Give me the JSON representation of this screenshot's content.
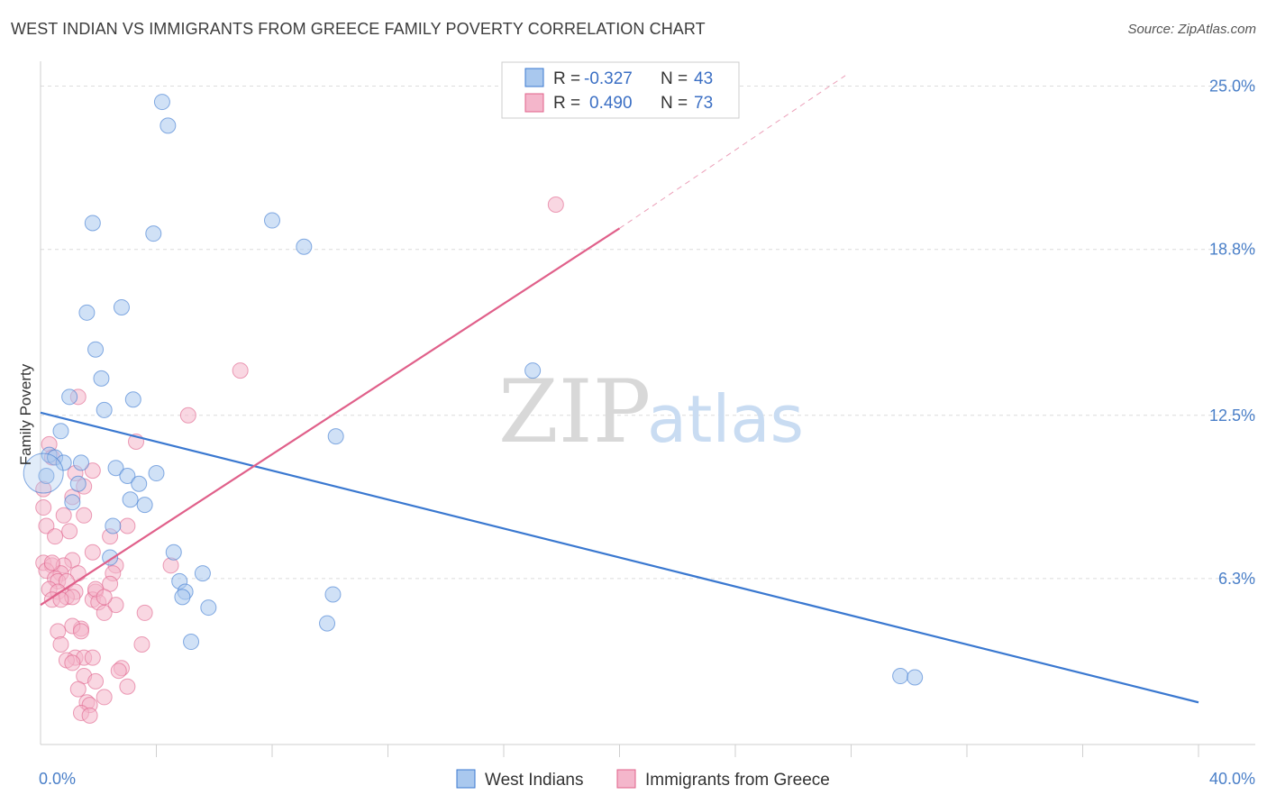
{
  "title": "WEST INDIAN VS IMMIGRANTS FROM GREECE FAMILY POVERTY CORRELATION CHART",
  "source": "Source: ZipAtlas.com",
  "chart_data": {
    "type": "scatter",
    "xlabel": "",
    "ylabel": "Family Poverty",
    "xlim": [
      0,
      40
    ],
    "ylim": [
      0,
      25.6
    ],
    "x_tick_labels": [
      {
        "value": 0,
        "label": "0.0%"
      },
      {
        "value": 40,
        "label": "40.0%"
      }
    ],
    "y_ticks": [
      {
        "value": 6.3,
        "label": "6.3%"
      },
      {
        "value": 12.5,
        "label": "12.5%"
      },
      {
        "value": 18.8,
        "label": "18.8%"
      },
      {
        "value": 25.0,
        "label": "25.0%"
      }
    ],
    "x_minor_ticks": [
      4,
      8,
      12,
      16,
      20,
      24,
      28,
      32,
      36,
      40
    ],
    "grid": "horizontal dashed",
    "watermark": {
      "zip": "ZIP",
      "atlas": "atlas"
    },
    "colors": {
      "west_indians": "#3a78d0",
      "greece": "#e0608a",
      "west_fill": "#a9c8ee",
      "greece_fill": "#f4b6cb"
    },
    "legend": {
      "position": "top-center",
      "rows": [
        {
          "r_label": "R =",
          "r_value": "-0.327",
          "n_label": "N =",
          "n_value": "43"
        },
        {
          "r_label": "R =",
          "r_value": "0.490",
          "n_label": "N =",
          "n_value": "73"
        }
      ]
    },
    "series": [
      {
        "name": "West Indians",
        "trend": {
          "x1": 0,
          "y1": 12.6,
          "x2": 40,
          "y2": 1.6
        },
        "points": [
          [
            4.2,
            24.4
          ],
          [
            4.4,
            23.5
          ],
          [
            1.8,
            19.8
          ],
          [
            3.9,
            19.4
          ],
          [
            8.0,
            19.9
          ],
          [
            9.1,
            18.9
          ],
          [
            1.6,
            16.4
          ],
          [
            2.8,
            16.6
          ],
          [
            1.9,
            15.0
          ],
          [
            2.1,
            13.9
          ],
          [
            17.0,
            14.2
          ],
          [
            1.0,
            13.2
          ],
          [
            3.2,
            13.1
          ],
          [
            2.2,
            12.7
          ],
          [
            0.7,
            11.9
          ],
          [
            10.2,
            11.7
          ],
          [
            0.3,
            11.0
          ],
          [
            0.5,
            10.9
          ],
          [
            0.8,
            10.7
          ],
          [
            1.4,
            10.7
          ],
          [
            2.6,
            10.5
          ],
          [
            3.0,
            10.2
          ],
          [
            4.0,
            10.3
          ],
          [
            0.2,
            10.2
          ],
          [
            1.3,
            9.9
          ],
          [
            3.4,
            9.9
          ],
          [
            1.1,
            9.2
          ],
          [
            3.1,
            9.3
          ],
          [
            3.6,
            9.1
          ],
          [
            2.5,
            8.3
          ],
          [
            4.6,
            7.3
          ],
          [
            2.4,
            7.1
          ],
          [
            5.6,
            6.5
          ],
          [
            4.8,
            6.2
          ],
          [
            5.0,
            5.8
          ],
          [
            4.9,
            5.6
          ],
          [
            10.1,
            5.7
          ],
          [
            5.8,
            5.2
          ],
          [
            9.9,
            4.6
          ],
          [
            5.2,
            3.9
          ],
          [
            29.7,
            2.6
          ],
          [
            30.2,
            2.55
          ],
          [
            0.1,
            10.3
          ]
        ]
      },
      {
        "name": "Immigrants from Greece",
        "trend": {
          "x1": 0,
          "y1": 5.3,
          "x2": 20,
          "y2": 19.6
        },
        "trend_ext": {
          "x1": 20,
          "y1": 19.6,
          "x2": 27.8,
          "y2": 25.4
        },
        "points": [
          [
            17.8,
            20.5
          ],
          [
            6.9,
            14.2
          ],
          [
            1.3,
            13.2
          ],
          [
            5.1,
            12.5
          ],
          [
            3.3,
            11.5
          ],
          [
            0.3,
            11.4
          ],
          [
            0.4,
            10.9
          ],
          [
            1.8,
            10.4
          ],
          [
            1.2,
            10.3
          ],
          [
            0.1,
            9.7
          ],
          [
            1.5,
            9.8
          ],
          [
            1.1,
            9.4
          ],
          [
            0.1,
            9.0
          ],
          [
            0.8,
            8.7
          ],
          [
            1.5,
            8.7
          ],
          [
            0.2,
            8.3
          ],
          [
            1.0,
            8.1
          ],
          [
            3.0,
            8.3
          ],
          [
            0.5,
            7.9
          ],
          [
            2.4,
            7.9
          ],
          [
            1.8,
            7.3
          ],
          [
            1.1,
            7.0
          ],
          [
            0.1,
            6.9
          ],
          [
            0.4,
            6.8
          ],
          [
            0.8,
            6.8
          ],
          [
            2.6,
            6.8
          ],
          [
            4.5,
            6.8
          ],
          [
            0.2,
            6.6
          ],
          [
            0.7,
            6.5
          ],
          [
            1.3,
            6.5
          ],
          [
            2.5,
            6.5
          ],
          [
            0.5,
            6.3
          ],
          [
            0.6,
            6.2
          ],
          [
            0.9,
            6.2
          ],
          [
            2.4,
            6.1
          ],
          [
            0.3,
            5.9
          ],
          [
            0.6,
            5.8
          ],
          [
            1.2,
            5.8
          ],
          [
            1.9,
            5.8
          ],
          [
            0.9,
            5.6
          ],
          [
            1.1,
            5.6
          ],
          [
            0.4,
            5.5
          ],
          [
            0.7,
            5.5
          ],
          [
            1.8,
            5.5
          ],
          [
            2.0,
            5.4
          ],
          [
            2.6,
            5.3
          ],
          [
            2.2,
            5.0
          ],
          [
            3.6,
            5.0
          ],
          [
            1.4,
            4.4
          ],
          [
            1.1,
            4.5
          ],
          [
            0.6,
            4.3
          ],
          [
            1.4,
            4.3
          ],
          [
            0.7,
            3.8
          ],
          [
            3.5,
            3.8
          ],
          [
            1.2,
            3.3
          ],
          [
            1.5,
            3.3
          ],
          [
            1.8,
            3.3
          ],
          [
            0.9,
            3.2
          ],
          [
            1.1,
            3.1
          ],
          [
            2.8,
            2.9
          ],
          [
            2.7,
            2.8
          ],
          [
            1.5,
            2.6
          ],
          [
            1.9,
            2.4
          ],
          [
            1.3,
            2.1
          ],
          [
            3.0,
            2.2
          ],
          [
            2.2,
            1.8
          ],
          [
            1.6,
            1.6
          ],
          [
            1.7,
            1.5
          ],
          [
            1.4,
            1.2
          ],
          [
            1.7,
            1.1
          ],
          [
            0.4,
            6.9
          ],
          [
            1.9,
            5.9
          ],
          [
            2.2,
            5.6
          ]
        ]
      }
    ]
  }
}
